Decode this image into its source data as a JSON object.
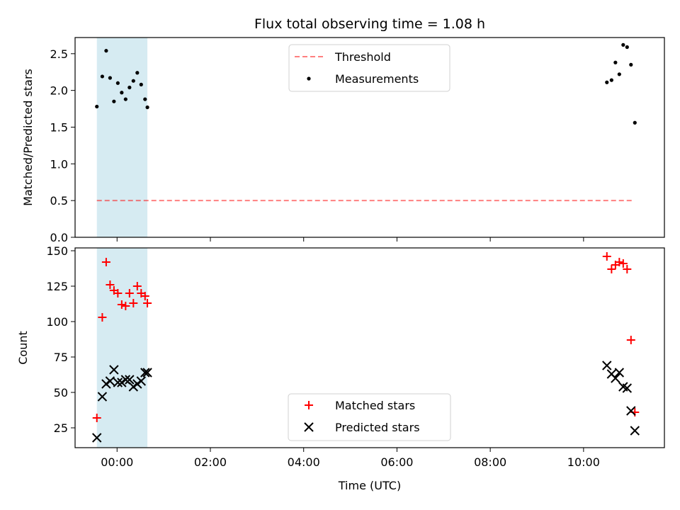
{
  "chart_data": {
    "type": "scatter",
    "title": "Flux total observing time = 1.08 h",
    "xlabel": "Time (UTC)",
    "x_ticks": [
      "00:00",
      "02:00",
      "04:00",
      "06:00",
      "08:00",
      "10:00"
    ],
    "xlim": [
      "23:06",
      "11:44"
    ],
    "observing_window": {
      "start": "23:34",
      "end": "00:39",
      "color": "#add8e6"
    },
    "top": {
      "ylabel": "Matched/Predicted stars",
      "ylim": [
        0,
        2.72
      ],
      "y_ticks": [
        "0.0",
        "0.5",
        "1.0",
        "1.5",
        "2.0",
        "2.5"
      ],
      "threshold": {
        "name": "Threshold",
        "value": 0.5,
        "x_start": "23:34",
        "x_end": "11:05",
        "color": "#ff0000"
      },
      "measurements": {
        "name": "Measurements",
        "color": "#000000",
        "x": [
          "23:34",
          "23:41",
          "23:46",
          "23:51",
          "23:56",
          "00:01",
          "00:06",
          "00:11",
          "00:16",
          "00:21",
          "00:26",
          "00:31",
          "00:36",
          "00:39",
          "10:30",
          "10:36",
          "10:41",
          "10:46",
          "10:51",
          "10:56",
          "11:01",
          "11:06"
        ],
        "y": [
          1.78,
          2.19,
          2.54,
          2.17,
          1.85,
          2.1,
          1.97,
          1.88,
          2.04,
          2.13,
          2.24,
          2.08,
          1.88,
          1.77,
          2.11,
          2.14,
          2.38,
          2.22,
          2.62,
          2.59,
          2.35,
          1.56
        ]
      }
    },
    "bottom": {
      "ylabel": "Count",
      "ylim": [
        11,
        152
      ],
      "y_ticks": [
        "25",
        "50",
        "75",
        "100",
        "125",
        "150"
      ],
      "matched": {
        "name": "Matched stars",
        "color": "#ff0000",
        "x": [
          "23:34",
          "23:41",
          "23:46",
          "23:51",
          "23:56",
          "00:01",
          "00:06",
          "00:11",
          "00:16",
          "00:21",
          "00:26",
          "00:31",
          "00:36",
          "00:39",
          "10:30",
          "10:36",
          "10:41",
          "10:46",
          "10:51",
          "10:56",
          "11:01",
          "11:06"
        ],
        "y": [
          32,
          103,
          142,
          126,
          122,
          120,
          112,
          111,
          120,
          113,
          125,
          120,
          118,
          113,
          146,
          137,
          140,
          142,
          141,
          137,
          87,
          36
        ]
      },
      "predicted": {
        "name": "Predicted stars",
        "color": "#000000",
        "x": [
          "23:34",
          "23:41",
          "23:46",
          "23:51",
          "23:56",
          "00:01",
          "00:06",
          "00:11",
          "00:16",
          "00:21",
          "00:26",
          "00:31",
          "00:36",
          "00:39",
          "10:30",
          "10:36",
          "10:41",
          "10:46",
          "10:51",
          "10:56",
          "11:01",
          "11:06"
        ],
        "y": [
          18,
          47,
          56,
          58,
          66,
          57,
          57,
          59,
          59,
          54,
          56,
          58,
          64,
          64,
          69,
          63,
          60,
          64,
          54,
          53,
          37,
          23
        ]
      }
    }
  }
}
